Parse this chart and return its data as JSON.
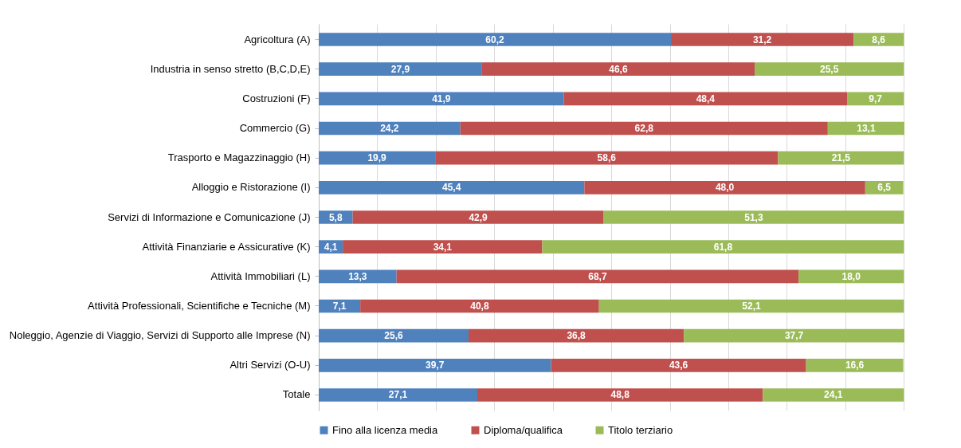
{
  "chart_data": {
    "type": "bar",
    "orientation": "horizontal",
    "stacked": true,
    "categories": [
      "Agricoltura (A)",
      "Industria in senso stretto (B,C,D,E)",
      "Costruzioni (F)",
      "Commercio (G)",
      "Trasporto e Magazzinaggio (H)",
      "Alloggio e Ristorazione (I)",
      "Servizi di Informazione e Comunicazione (J)",
      "Attività Finanziarie e Assicurative (K)",
      "Attività Immobiliari (L)",
      "Attività Professionali, Scientifiche e Tecniche (M)",
      "Noleggio, Agenzie di Viaggio, Servizi di Supporto alle Imprese (N)",
      "Altri Servizi (O-U)",
      "Totale"
    ],
    "series": [
      {
        "name": "Fino alla licenza media",
        "color": "#4f81bd",
        "values": [
          60.2,
          27.9,
          41.9,
          24.2,
          19.9,
          45.4,
          5.8,
          4.1,
          13.3,
          7.1,
          25.6,
          39.7,
          27.1
        ],
        "value_labels": [
          "60,2",
          "27,9",
          "41,9",
          "24,2",
          "19,9",
          "45,4",
          "5,8",
          "4,1",
          "13,3",
          "7,1",
          "25,6",
          "39,7",
          "27,1"
        ]
      },
      {
        "name": "Diploma/qualifica",
        "color": "#c0504d",
        "values": [
          31.2,
          46.6,
          48.4,
          62.8,
          58.6,
          48.0,
          42.9,
          34.1,
          68.7,
          40.8,
          36.8,
          43.6,
          48.8
        ],
        "value_labels": [
          "31,2",
          "46,6",
          "48,4",
          "62,8",
          "58,6",
          "48,0",
          "42,9",
          "34,1",
          "68,7",
          "40,8",
          "36,8",
          "43,6",
          "48,8"
        ]
      },
      {
        "name": "Titolo terziario",
        "color": "#9bbb59",
        "values": [
          8.6,
          25.5,
          9.7,
          13.1,
          21.5,
          6.5,
          51.3,
          61.8,
          18.0,
          52.1,
          37.7,
          16.6,
          24.1
        ],
        "value_labels": [
          "8,6",
          "25,5",
          "9,7",
          "13,1",
          "21,5",
          "6,5",
          "51,3",
          "61,8",
          "18,0",
          "52,1",
          "37,7",
          "16,6",
          "24,1"
        ]
      }
    ],
    "tick_labels": "y",
    "grid": "x",
    "legend": "bottom"
  }
}
